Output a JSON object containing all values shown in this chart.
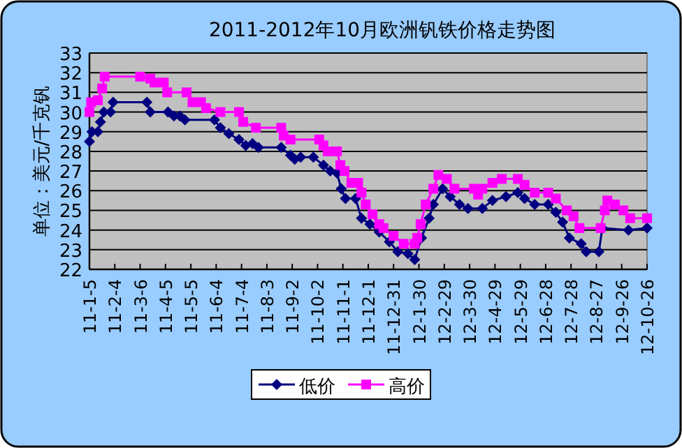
{
  "chart_data": {
    "type": "line",
    "title": "2011-2012年10月欧洲钒铁价格走势图",
    "ylabel": "单位：美元/千克钒",
    "xlim": [
      "2011-01-05",
      "2012-10-26"
    ],
    "xticks": [
      {
        "value": "2011-01-05",
        "label": "11-1-5"
      },
      {
        "value": "2011-02-04",
        "label": "11-2-4"
      },
      {
        "value": "2011-03-06",
        "label": "11-3-6"
      },
      {
        "value": "2011-04-05",
        "label": "11-4-5"
      },
      {
        "value": "2011-05-05",
        "label": "11-5-5"
      },
      {
        "value": "2011-06-04",
        "label": "11-6-4"
      },
      {
        "value": "2011-07-04",
        "label": "11-7-4"
      },
      {
        "value": "2011-08-03",
        "label": "11-8-3"
      },
      {
        "value": "2011-09-02",
        "label": "11-9-2"
      },
      {
        "value": "2011-10-02",
        "label": "11-10-2"
      },
      {
        "value": "2011-11-01",
        "label": "11-11-1"
      },
      {
        "value": "2011-12-01",
        "label": "11-12-1"
      },
      {
        "value": "2011-12-31",
        "label": "11-12-31"
      },
      {
        "value": "2012-01-30",
        "label": "12-1-30"
      },
      {
        "value": "2012-02-29",
        "label": "12-2-29"
      },
      {
        "value": "2012-03-30",
        "label": "12-3-30"
      },
      {
        "value": "2012-04-29",
        "label": "12-4-29"
      },
      {
        "value": "2012-05-29",
        "label": "12-5-29"
      },
      {
        "value": "2012-06-28",
        "label": "12-6-28"
      },
      {
        "value": "2012-07-28",
        "label": "12-7-28"
      },
      {
        "value": "2012-08-27",
        "label": "12-8-27"
      },
      {
        "value": "2012-09-26",
        "label": "12-9-26"
      },
      {
        "value": "2012-10-26",
        "label": "12-10-26"
      }
    ],
    "ylim": [
      22,
      33
    ],
    "yticks": [
      22,
      23,
      24,
      25,
      26,
      27,
      28,
      29,
      30,
      31,
      32,
      33
    ],
    "grid": "y",
    "legend": "bottom",
    "series": [
      {
        "name": "低价",
        "color": "#000080",
        "marker": "diamond",
        "x": [
          "2011-01-05",
          "2011-01-08",
          "2011-01-15",
          "2011-01-18",
          "2011-01-22",
          "2011-01-30",
          "2011-02-02",
          "2011-03-14",
          "2011-03-18",
          "2011-04-08",
          "2011-04-15",
          "2011-04-22",
          "2011-04-28",
          "2011-06-02",
          "2011-06-09",
          "2011-06-19",
          "2011-07-01",
          "2011-07-09",
          "2011-07-17",
          "2011-07-24",
          "2011-08-20",
          "2011-08-31",
          "2011-09-05",
          "2011-09-12",
          "2011-09-27",
          "2011-10-09",
          "2011-10-17",
          "2011-10-25",
          "2011-10-30",
          "2011-11-04",
          "2011-11-16",
          "2011-11-23",
          "2011-12-03",
          "2011-12-14",
          "2011-12-26",
          "2012-01-05",
          "2012-01-17",
          "2012-01-25",
          "2012-02-02",
          "2012-02-11",
          "2012-02-16",
          "2012-02-27",
          "2012-03-07",
          "2012-03-18",
          "2012-03-28",
          "2012-04-14",
          "2012-04-26",
          "2012-05-12",
          "2012-05-26",
          "2012-06-03",
          "2012-06-15",
          "2012-07-01",
          "2012-07-10",
          "2012-07-18",
          "2012-07-26",
          "2012-08-09",
          "2012-08-15",
          "2012-08-30",
          "2012-09-03",
          "2012-10-04",
          "2012-10-26"
        ],
        "values": [
          28.5,
          29.0,
          29.0,
          29.5,
          30.0,
          30.0,
          30.5,
          30.5,
          30.0,
          30.0,
          29.8,
          29.8,
          29.6,
          29.6,
          29.2,
          28.9,
          28.6,
          28.3,
          28.4,
          28.2,
          28.2,
          27.8,
          27.6,
          27.7,
          27.7,
          27.3,
          27.0,
          26.9,
          26.1,
          25.6,
          25.6,
          24.6,
          24.3,
          23.9,
          23.4,
          22.9,
          22.8,
          22.5,
          23.6,
          24.6,
          25.3,
          26.1,
          25.7,
          25.3,
          25.1,
          25.1,
          25.5,
          25.7,
          25.9,
          25.6,
          25.3,
          25.3,
          24.9,
          24.4,
          23.6,
          23.3,
          22.9,
          22.9,
          24.1,
          24.0,
          24.1
        ]
      },
      {
        "name": "高价",
        "color": "#ff00ff",
        "marker": "square",
        "x": [
          "2011-01-05",
          "2011-01-07",
          "2011-01-15",
          "2011-01-20",
          "2011-01-23",
          "2011-03-06",
          "2011-03-18",
          "2011-03-23",
          "2011-04-03",
          "2011-04-07",
          "2011-04-30",
          "2011-05-07",
          "2011-05-17",
          "2011-05-23",
          "2011-06-09",
          "2011-07-01",
          "2011-07-06",
          "2011-07-21",
          "2011-08-20",
          "2011-08-23",
          "2011-08-31",
          "2011-10-04",
          "2011-10-09",
          "2011-10-14",
          "2011-10-25",
          "2011-10-29",
          "2011-11-03",
          "2011-11-11",
          "2011-11-19",
          "2011-11-23",
          "2011-11-28",
          "2011-12-06",
          "2011-12-14",
          "2011-12-19",
          "2011-12-31",
          "2012-01-12",
          "2012-01-25",
          "2012-01-28",
          "2012-02-01",
          "2012-02-07",
          "2012-02-16",
          "2012-02-22",
          "2012-03-03",
          "2012-03-12",
          "2012-04-04",
          "2012-04-09",
          "2012-04-14",
          "2012-04-26",
          "2012-05-07",
          "2012-05-26",
          "2012-06-03",
          "2012-06-15",
          "2012-07-01",
          "2012-07-10",
          "2012-07-23",
          "2012-07-31",
          "2012-08-07",
          "2012-09-01",
          "2012-09-06",
          "2012-09-09",
          "2012-09-18",
          "2012-09-28",
          "2012-10-06",
          "2012-10-26"
        ],
        "values": [
          30.0,
          30.5,
          30.6,
          31.2,
          31.8,
          31.8,
          31.7,
          31.5,
          31.5,
          31.0,
          31.0,
          30.5,
          30.5,
          30.2,
          30.0,
          30.0,
          29.5,
          29.2,
          29.2,
          28.8,
          28.6,
          28.6,
          28.3,
          28.0,
          28.0,
          27.3,
          27.0,
          26.4,
          26.4,
          25.9,
          25.3,
          24.8,
          24.3,
          24.1,
          23.7,
          23.3,
          23.3,
          23.6,
          24.3,
          25.3,
          26.1,
          26.8,
          26.6,
          26.1,
          26.1,
          25.8,
          26.1,
          26.4,
          26.6,
          26.6,
          26.3,
          25.9,
          25.9,
          25.6,
          25.0,
          24.7,
          24.1,
          24.1,
          25.0,
          25.5,
          25.3,
          25.0,
          24.6,
          24.6
        ]
      }
    ]
  }
}
